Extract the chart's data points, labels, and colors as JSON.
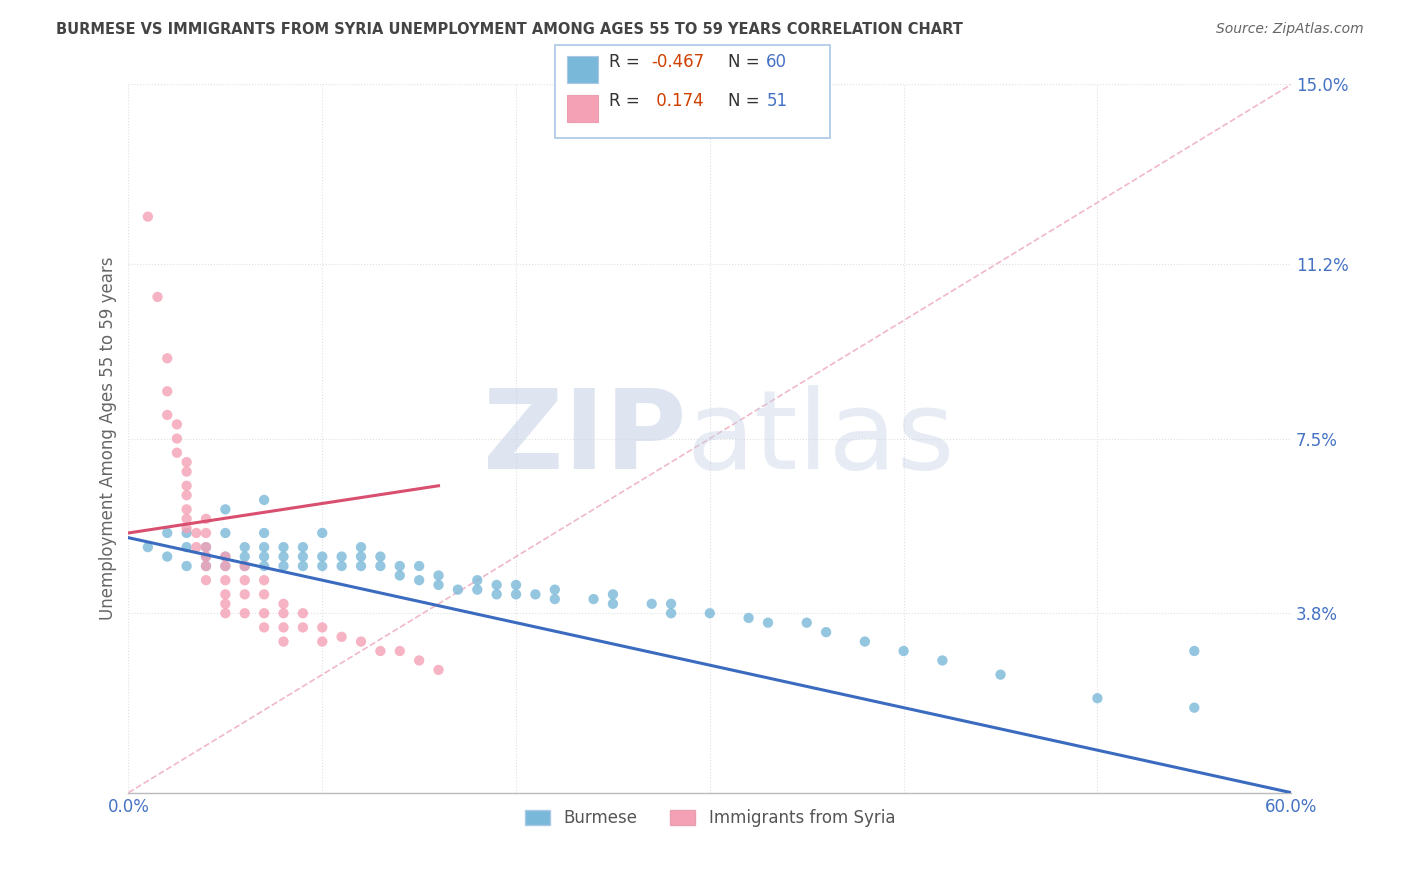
{
  "title": "BURMESE VS IMMIGRANTS FROM SYRIA UNEMPLOYMENT AMONG AGES 55 TO 59 YEARS CORRELATION CHART",
  "source": "Source: ZipAtlas.com",
  "ylabel": "Unemployment Among Ages 55 to 59 years",
  "xmin": 0.0,
  "xmax": 0.6,
  "ymin": 0.0,
  "ymax": 0.15,
  "burmese_color": "#7ab8d9",
  "syria_color": "#f4a0b5",
  "trend_blue_color": "#3a6bbf",
  "trend_pink_color": "#d94f70",
  "diag_line_color": "#f0b8c8",
  "title_color": "#444444",
  "axis_tick_color": "#4472c4",
  "ylabel_color": "#666666",
  "r_neg_color": "#d04000",
  "r_pos_color": "#d04000",
  "n_color": "#4472c4",
  "legend_border_color": "#aac8e8",
  "grid_color": "#e0e0e0",
  "burmese_scatter": [
    [
      0.01,
      0.052
    ],
    [
      0.02,
      0.05
    ],
    [
      0.02,
      0.055
    ],
    [
      0.03,
      0.048
    ],
    [
      0.03,
      0.052
    ],
    [
      0.03,
      0.055
    ],
    [
      0.04,
      0.05
    ],
    [
      0.04,
      0.052
    ],
    [
      0.04,
      0.048
    ],
    [
      0.05,
      0.05
    ],
    [
      0.05,
      0.055
    ],
    [
      0.05,
      0.048
    ],
    [
      0.05,
      0.06
    ],
    [
      0.06,
      0.05
    ],
    [
      0.06,
      0.052
    ],
    [
      0.06,
      0.048
    ],
    [
      0.07,
      0.048
    ],
    [
      0.07,
      0.052
    ],
    [
      0.07,
      0.05
    ],
    [
      0.07,
      0.055
    ],
    [
      0.07,
      0.062
    ],
    [
      0.08,
      0.048
    ],
    [
      0.08,
      0.05
    ],
    [
      0.08,
      0.052
    ],
    [
      0.09,
      0.048
    ],
    [
      0.09,
      0.05
    ],
    [
      0.09,
      0.052
    ],
    [
      0.1,
      0.05
    ],
    [
      0.1,
      0.055
    ],
    [
      0.1,
      0.048
    ],
    [
      0.11,
      0.048
    ],
    [
      0.11,
      0.05
    ],
    [
      0.12,
      0.048
    ],
    [
      0.12,
      0.05
    ],
    [
      0.12,
      0.052
    ],
    [
      0.13,
      0.048
    ],
    [
      0.13,
      0.05
    ],
    [
      0.14,
      0.046
    ],
    [
      0.14,
      0.048
    ],
    [
      0.15,
      0.045
    ],
    [
      0.15,
      0.048
    ],
    [
      0.16,
      0.044
    ],
    [
      0.16,
      0.046
    ],
    [
      0.17,
      0.043
    ],
    [
      0.18,
      0.043
    ],
    [
      0.18,
      0.045
    ],
    [
      0.19,
      0.042
    ],
    [
      0.19,
      0.044
    ],
    [
      0.2,
      0.042
    ],
    [
      0.2,
      0.044
    ],
    [
      0.21,
      0.042
    ],
    [
      0.22,
      0.041
    ],
    [
      0.22,
      0.043
    ],
    [
      0.24,
      0.041
    ],
    [
      0.25,
      0.04
    ],
    [
      0.25,
      0.042
    ],
    [
      0.27,
      0.04
    ],
    [
      0.28,
      0.038
    ],
    [
      0.28,
      0.04
    ],
    [
      0.3,
      0.038
    ],
    [
      0.32,
      0.037
    ],
    [
      0.33,
      0.036
    ],
    [
      0.35,
      0.036
    ],
    [
      0.36,
      0.034
    ],
    [
      0.38,
      0.032
    ],
    [
      0.4,
      0.03
    ],
    [
      0.42,
      0.028
    ],
    [
      0.45,
      0.025
    ],
    [
      0.5,
      0.02
    ],
    [
      0.55,
      0.018
    ],
    [
      0.55,
      0.03
    ]
  ],
  "syria_scatter": [
    [
      0.01,
      0.122
    ],
    [
      0.015,
      0.105
    ],
    [
      0.02,
      0.092
    ],
    [
      0.02,
      0.085
    ],
    [
      0.02,
      0.08
    ],
    [
      0.025,
      0.078
    ],
    [
      0.025,
      0.075
    ],
    [
      0.025,
      0.072
    ],
    [
      0.03,
      0.07
    ],
    [
      0.03,
      0.068
    ],
    [
      0.03,
      0.065
    ],
    [
      0.03,
      0.063
    ],
    [
      0.03,
      0.06
    ],
    [
      0.03,
      0.058
    ],
    [
      0.03,
      0.056
    ],
    [
      0.035,
      0.055
    ],
    [
      0.035,
      0.052
    ],
    [
      0.04,
      0.058
    ],
    [
      0.04,
      0.055
    ],
    [
      0.04,
      0.052
    ],
    [
      0.04,
      0.05
    ],
    [
      0.04,
      0.048
    ],
    [
      0.04,
      0.045
    ],
    [
      0.05,
      0.05
    ],
    [
      0.05,
      0.048
    ],
    [
      0.05,
      0.045
    ],
    [
      0.05,
      0.042
    ],
    [
      0.05,
      0.04
    ],
    [
      0.05,
      0.038
    ],
    [
      0.06,
      0.048
    ],
    [
      0.06,
      0.045
    ],
    [
      0.06,
      0.042
    ],
    [
      0.06,
      0.038
    ],
    [
      0.07,
      0.045
    ],
    [
      0.07,
      0.042
    ],
    [
      0.07,
      0.038
    ],
    [
      0.07,
      0.035
    ],
    [
      0.08,
      0.04
    ],
    [
      0.08,
      0.038
    ],
    [
      0.08,
      0.035
    ],
    [
      0.08,
      0.032
    ],
    [
      0.09,
      0.038
    ],
    [
      0.09,
      0.035
    ],
    [
      0.1,
      0.035
    ],
    [
      0.1,
      0.032
    ],
    [
      0.11,
      0.033
    ],
    [
      0.12,
      0.032
    ],
    [
      0.13,
      0.03
    ],
    [
      0.14,
      0.03
    ],
    [
      0.15,
      0.028
    ],
    [
      0.16,
      0.026
    ]
  ],
  "blue_trend_x": [
    0.0,
    0.6
  ],
  "blue_trend_y": [
    0.054,
    0.0
  ],
  "pink_trend_x": [
    0.0,
    0.16
  ],
  "pink_trend_y": [
    0.055,
    0.065
  ],
  "diag_line_x": [
    0.0,
    0.6
  ],
  "diag_line_y": [
    0.0,
    0.15
  ]
}
